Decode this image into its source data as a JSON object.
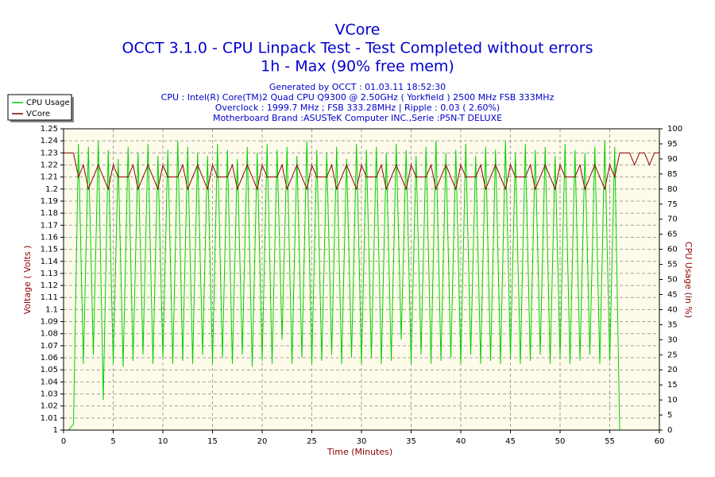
{
  "chart_data": {
    "type": "line",
    "title": "VCore",
    "subtitle_lines": [
      "OCCT 3.1.0 - CPU Linpack Test - Test Completed without errors",
      "1h - Max (90% free mem)"
    ],
    "info_lines": [
      "Generated by OCCT : 01.03.11 18:52:30",
      "CPU : Intel(R) Core(TM)2 Quad CPU Q9300 @ 2.50GHz ( Yorkfield ) 2500 MHz FSB 333MHz",
      "Overclock : 1999.7 MHz ; FSB 333.28MHz | Ripple : 0.03 ( 2.60%)",
      "Motherboard Brand :ASUSTeK Computer INC.,Serie :P5N-T DELUXE"
    ],
    "x_label": "Time (Minutes)",
    "y_label": "Voltage ( Volts )",
    "y2_label": "CPU Usage (in %)",
    "xlim": [
      0,
      60
    ],
    "xticks": [
      0,
      5,
      10,
      15,
      20,
      25,
      30,
      35,
      40,
      45,
      50,
      55,
      60
    ],
    "ylim": [
      1,
      1.25
    ],
    "yticks": [
      1,
      1.01,
      1.02,
      1.03,
      1.04,
      1.05,
      1.06,
      1.07,
      1.08,
      1.09,
      1.1,
      1.11,
      1.12,
      1.13,
      1.14,
      1.15,
      1.16,
      1.17,
      1.18,
      1.19,
      1.2,
      1.21,
      1.22,
      1.23,
      1.24,
      1.25
    ],
    "y2lim": [
      0,
      100
    ],
    "y2ticks": [
      0,
      5,
      10,
      15,
      20,
      25,
      30,
      35,
      40,
      45,
      50,
      55,
      60,
      65,
      70,
      75,
      80,
      85,
      90,
      95,
      100
    ],
    "grid": true,
    "legend": "top-left",
    "x": [
      0,
      0.5,
      1,
      1.5,
      2,
      2.5,
      3,
      3.5,
      4,
      4.5,
      5,
      5.5,
      6,
      6.5,
      7,
      7.5,
      8,
      8.5,
      9,
      9.5,
      10,
      10.5,
      11,
      11.5,
      12,
      12.5,
      13,
      13.5,
      14,
      14.5,
      15,
      15.5,
      16,
      16.5,
      17,
      17.5,
      18,
      18.5,
      19,
      19.5,
      20,
      20.5,
      21,
      21.5,
      22,
      22.5,
      23,
      23.5,
      24,
      24.5,
      25,
      25.5,
      26,
      26.5,
      27,
      27.5,
      28,
      28.5,
      29,
      29.5,
      30,
      30.5,
      31,
      31.5,
      32,
      32.5,
      33,
      33.5,
      34,
      34.5,
      35,
      35.5,
      36,
      36.5,
      37,
      37.5,
      38,
      38.5,
      39,
      39.5,
      40,
      40.5,
      41,
      41.5,
      42,
      42.5,
      43,
      43.5,
      44,
      44.5,
      45,
      45.5,
      46,
      46.5,
      47,
      47.5,
      48,
      48.5,
      49,
      49.5,
      50,
      50.5,
      51,
      51.5,
      52,
      52.5,
      53,
      53.5,
      54,
      54.5,
      55,
      55.5,
      56,
      56.5,
      57,
      57.5,
      58,
      58.5,
      59,
      59.5,
      60
    ],
    "series": [
      {
        "name": "CPU Usage",
        "color": "#00d000",
        "axis": "y2",
        "values": [
          0,
          0,
          2,
          95,
          22,
          94,
          25,
          96,
          10,
          93,
          22,
          90,
          21,
          94,
          23,
          92,
          25,
          95,
          22,
          91,
          24,
          93,
          22,
          96,
          23,
          94,
          22,
          92,
          25,
          91,
          22,
          95,
          24,
          93,
          22,
          90,
          25,
          94,
          21,
          92,
          23,
          95,
          22,
          93,
          30,
          94,
          22,
          91,
          24,
          96,
          22,
          93,
          23,
          92,
          25,
          94,
          22,
          90,
          24,
          95,
          22,
          93,
          24,
          94,
          22,
          92,
          23,
          95,
          30,
          93,
          22,
          91,
          25,
          94,
          22,
          96,
          23,
          92,
          24,
          93,
          22,
          95,
          25,
          91,
          22,
          94,
          23,
          93,
          22,
          96,
          24,
          92,
          22,
          95,
          23,
          93,
          25,
          94,
          22,
          91,
          24,
          95,
          22,
          93,
          23,
          92,
          25,
          94,
          22,
          96,
          23,
          94,
          0,
          null,
          null,
          null,
          null,
          null,
          null,
          null,
          null
        ]
      },
      {
        "name": "VCore",
        "color": "#8b0000",
        "values": [
          1.23,
          1.23,
          1.23,
          1.21,
          1.22,
          1.2,
          1.21,
          1.22,
          1.21,
          1.2,
          1.22,
          1.21,
          1.21,
          1.21,
          1.22,
          1.2,
          1.21,
          1.22,
          1.21,
          1.2,
          1.22,
          1.21,
          1.21,
          1.21,
          1.22,
          1.2,
          1.21,
          1.22,
          1.21,
          1.2,
          1.22,
          1.21,
          1.21,
          1.21,
          1.22,
          1.2,
          1.21,
          1.22,
          1.21,
          1.2,
          1.22,
          1.21,
          1.21,
          1.21,
          1.22,
          1.2,
          1.21,
          1.22,
          1.21,
          1.2,
          1.22,
          1.21,
          1.21,
          1.21,
          1.22,
          1.2,
          1.21,
          1.22,
          1.21,
          1.2,
          1.22,
          1.21,
          1.21,
          1.21,
          1.22,
          1.2,
          1.21,
          1.22,
          1.21,
          1.2,
          1.22,
          1.21,
          1.21,
          1.21,
          1.22,
          1.2,
          1.21,
          1.22,
          1.21,
          1.2,
          1.22,
          1.21,
          1.21,
          1.21,
          1.22,
          1.2,
          1.21,
          1.22,
          1.21,
          1.2,
          1.22,
          1.21,
          1.21,
          1.21,
          1.22,
          1.2,
          1.21,
          1.22,
          1.21,
          1.2,
          1.22,
          1.21,
          1.21,
          1.21,
          1.22,
          1.2,
          1.21,
          1.22,
          1.21,
          1.2,
          1.22,
          1.21,
          1.23,
          1.23,
          1.23,
          1.22,
          1.23,
          1.23,
          1.22,
          1.23,
          1.23
        ]
      }
    ]
  }
}
